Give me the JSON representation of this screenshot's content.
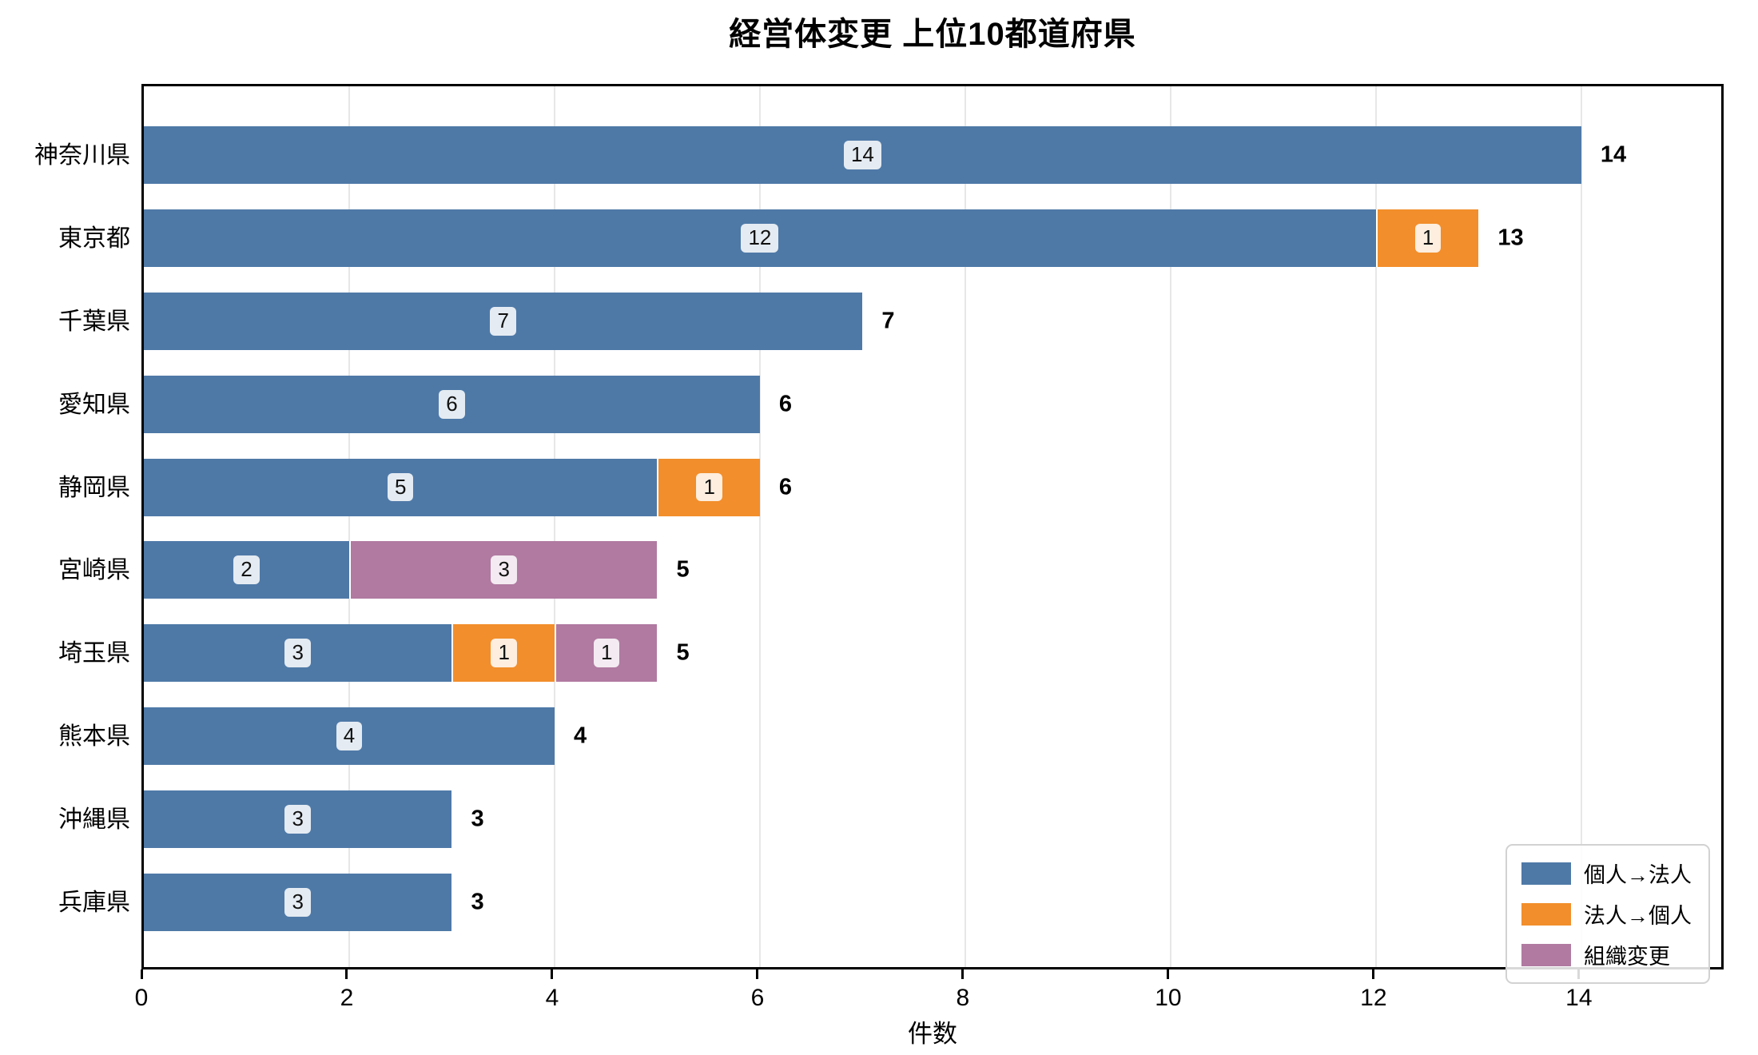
{
  "chart_data": {
    "type": "bar",
    "orientation": "horizontal-stacked",
    "title": "経営体変更 上位10都道府県",
    "xlabel": "件数",
    "categories": [
      "神奈川県",
      "東京都",
      "千葉県",
      "愛知県",
      "静岡県",
      "宮崎県",
      "埼玉県",
      "熊本県",
      "沖縄県",
      "兵庫県"
    ],
    "series": [
      {
        "name": "個人→法人",
        "color": "#4e79a7",
        "values": [
          14,
          12,
          7,
          6,
          5,
          2,
          3,
          4,
          3,
          3
        ]
      },
      {
        "name": "法人→個人",
        "color": "#f28e2b",
        "values": [
          0,
          1,
          0,
          0,
          1,
          0,
          1,
          0,
          0,
          0
        ]
      },
      {
        "name": "組織変更",
        "color": "#b07aa1",
        "values": [
          0,
          0,
          0,
          0,
          0,
          3,
          1,
          0,
          0,
          0
        ]
      }
    ],
    "totals": [
      14,
      13,
      7,
      6,
      6,
      5,
      5,
      4,
      3,
      3
    ],
    "x_ticks": [
      0,
      2,
      4,
      6,
      8,
      10,
      12,
      14
    ],
    "xlim": [
      0,
      15.41
    ],
    "grid": true,
    "legend_position": "lower right",
    "colors": {
      "grid": "#e7e7e7",
      "spine": "#000000",
      "segment_label_bg": "rgba(255,255,255,0.85)",
      "total_label": "#000000"
    }
  }
}
